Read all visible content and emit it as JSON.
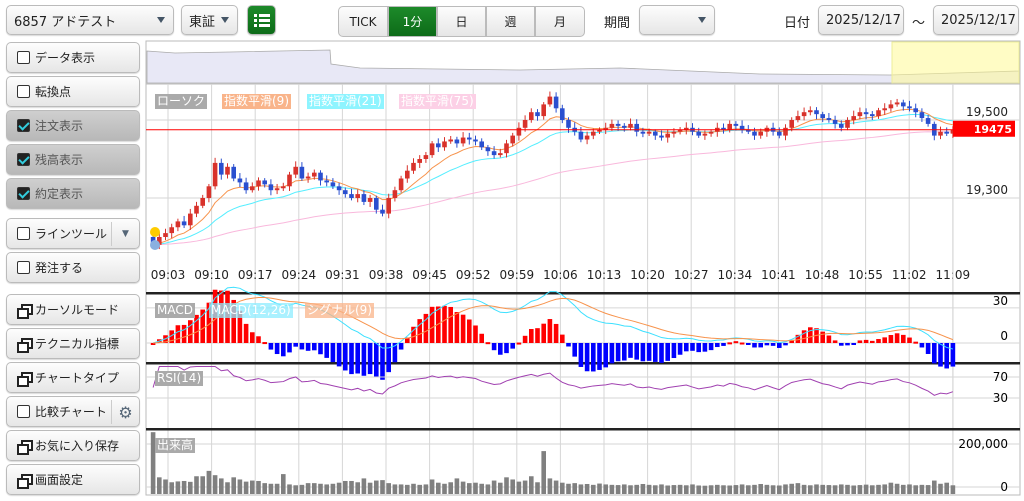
{
  "toolbar": {
    "symbol": "6857 アドテスト",
    "market": "東証",
    "intervals": [
      "TICK",
      "1分",
      "日",
      "週",
      "月"
    ],
    "active_interval": "1分",
    "period_label": "期間",
    "period_value": "",
    "date_label": "日付",
    "date_from": "2025/12/17",
    "date_sep": "～",
    "date_to": "2025/12/17"
  },
  "sidebar": {
    "items": [
      {
        "label": "データ表示",
        "type": "check",
        "checked": false
      },
      {
        "label": "転換点",
        "type": "check",
        "checked": false
      },
      {
        "label": "注文表示",
        "type": "check",
        "checked": true
      },
      {
        "label": "残高表示",
        "type": "check",
        "checked": true
      },
      {
        "label": "約定表示",
        "type": "check",
        "checked": true
      },
      {
        "label": "ラインツール",
        "type": "check",
        "checked": false
      },
      {
        "label": "発注する",
        "type": "check",
        "checked": false
      },
      {
        "label": "カーソルモード",
        "type": "win"
      },
      {
        "label": "テクニカル指標",
        "type": "win"
      },
      {
        "label": "チャートタイプ",
        "type": "win"
      },
      {
        "label": "比較チャート",
        "type": "check",
        "checked": false
      },
      {
        "label": "お気に入り保存",
        "type": "win"
      },
      {
        "label": "画面設定",
        "type": "win"
      }
    ]
  },
  "legend": {
    "candle": "ローソク",
    "ema9": "指数平滑(9)",
    "ema21": "指数平滑(21)",
    "ema75": "指数平滑(75)",
    "macd": "MACD",
    "macd_line": "MACD(12,26)",
    "signal": "シグナル(9)",
    "rsi": "RSI(14)",
    "volume": "出来高"
  },
  "colors": {
    "up": "#d8322b",
    "down": "#2a4fcf",
    "ema9": "#f7934c",
    "ema21": "#55eeff",
    "ema75": "#f9b8dc",
    "rsi": "#a040b0",
    "accent": "#0d6b18",
    "current": "#ff0000"
  },
  "chart_data": {
    "type": "candlestick",
    "x_tick_labels": [
      "09:03",
      "09:10",
      "09:17",
      "09:24",
      "09:31",
      "09:38",
      "09:45",
      "09:52",
      "09:59",
      "10:06",
      "10:13",
      "10:20",
      "10:27",
      "10:34",
      "10:41",
      "10:48",
      "10:55",
      "11:02",
      "11:09"
    ],
    "price_ticks": [
      "19,500",
      "19,300"
    ],
    "price_tick_values": [
      19500,
      19300
    ],
    "current_price": "19475",
    "current_price_value": 19475,
    "macd_ticks": [
      "30",
      "0"
    ],
    "rsi_ticks": [
      "70",
      "30"
    ],
    "volume_ticks": [
      "200,000",
      "0"
    ],
    "closes": [
      19180,
      19200,
      19210,
      19225,
      19240,
      19230,
      19260,
      19280,
      19300,
      19330,
      19390,
      19360,
      19380,
      19350,
      19340,
      19320,
      19330,
      19345,
      19335,
      19320,
      19325,
      19330,
      19360,
      19380,
      19350,
      19355,
      19365,
      19345,
      19340,
      19330,
      19320,
      19310,
      19300,
      19310,
      19290,
      19300,
      19270,
      19260,
      19300,
      19320,
      19350,
      19370,
      19390,
      19400,
      19410,
      19440,
      19430,
      19445,
      19450,
      19440,
      19455,
      19450,
      19445,
      19430,
      19420,
      19410,
      19415,
      19440,
      19460,
      19480,
      19500,
      19520,
      19510,
      19540,
      19560,
      19530,
      19500,
      19480,
      19470,
      19450,
      19460,
      19470,
      19475,
      19480,
      19490,
      19485,
      19480,
      19490,
      19470,
      19465,
      19470,
      19460,
      19455,
      19465,
      19470,
      19475,
      19480,
      19470,
      19460,
      19465,
      19470,
      19480,
      19475,
      19490,
      19485,
      19475,
      19470,
      19460,
      19470,
      19480,
      19470,
      19460,
      19480,
      19500,
      19510,
      19520,
      19525,
      19515,
      19505,
      19500,
      19490,
      19480,
      19500,
      19510,
      19520,
      19515,
      19510,
      19525,
      19530,
      19540,
      19545,
      19535,
      19530,
      19520,
      19505,
      19490,
      19460,
      19470,
      19465,
      19475
    ],
    "volumes": [
      255000,
      45000,
      35000,
      22000,
      26000,
      28000,
      24000,
      50000,
      50000,
      75000,
      55000,
      40000,
      22000,
      45000,
      35000,
      25000,
      30000,
      28000,
      18000,
      15000,
      15000,
      60000,
      12000,
      8000,
      10000,
      18000,
      18000,
      15000,
      12000,
      15000,
      20000,
      28000,
      28000,
      22000,
      40000,
      20000,
      30000,
      32000,
      18000,
      12000,
      12000,
      10000,
      15000,
      10000,
      12000,
      35000,
      20000,
      15000,
      22000,
      40000,
      25000,
      18000,
      20000,
      15000,
      12000,
      30000,
      20000,
      45000,
      35000,
      25000,
      30000,
      50000,
      22000,
      167000,
      40000,
      30000,
      20000,
      15000,
      18000,
      12000,
      14000,
      10000,
      16000,
      12000,
      10000,
      9000,
      12000,
      8000,
      10000,
      14000,
      10000,
      8000,
      12000,
      7000,
      9000,
      10000,
      8000,
      12000,
      7000,
      6000,
      8000,
      10000,
      8000,
      7000,
      9000,
      12000,
      8000,
      10000,
      14000,
      10000,
      8000,
      7000,
      12000,
      15000,
      18000,
      10000,
      8000,
      12000,
      10000,
      9000,
      8000,
      12000,
      10000,
      7000,
      9000,
      11000,
      8000,
      10000,
      12000,
      20000,
      15000,
      10000,
      12000,
      8000,
      10000,
      9000,
      30000,
      15000,
      20000,
      8000
    ]
  }
}
